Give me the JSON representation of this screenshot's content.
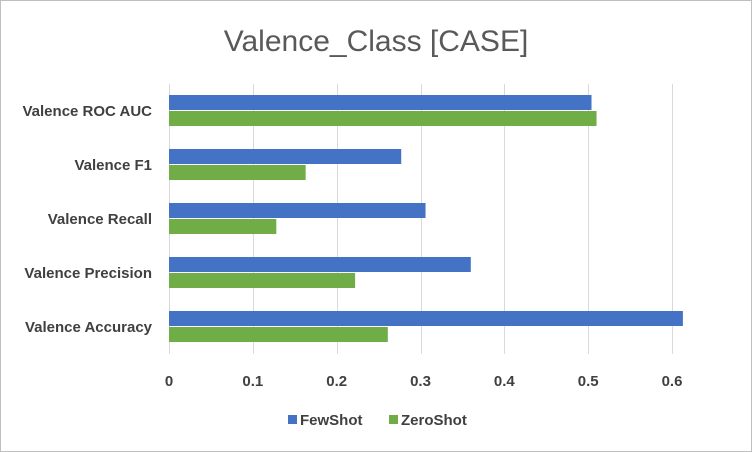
{
  "chart_data": {
    "type": "bar",
    "orientation": "horizontal",
    "title": "Valence_Class [CASE]",
    "xlabel": "",
    "ylabel": "",
    "categories": [
      "Valence ROC AUC",
      "Valence F1",
      "Valence Recall",
      "Valence Precision",
      "Valence Accuracy"
    ],
    "series": [
      {
        "name": "FewShot",
        "color": "#4472c4",
        "values": [
          0.504,
          0.277,
          0.306,
          0.36,
          0.613
        ]
      },
      {
        "name": "ZeroShot",
        "color": "#70ad47",
        "values": [
          0.51,
          0.163,
          0.128,
          0.222,
          0.261
        ]
      }
    ],
    "xlim": [
      0,
      0.6
    ],
    "xticks": [
      0,
      0.1,
      0.2,
      0.3,
      0.4,
      0.5,
      0.6
    ],
    "xtick_labels": [
      "0",
      "0.1",
      "0.2",
      "0.3",
      "0.4",
      "0.5",
      "0.6"
    ],
    "grid": true,
    "legend": "bottom"
  }
}
